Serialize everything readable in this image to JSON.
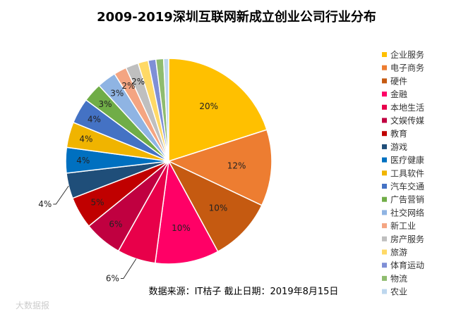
{
  "chart_data": {
    "type": "pie",
    "title": "2009-2019深圳互联网新成立创业公司行业分布",
    "source_note": "数据来源：IT桔子 截止日期：2019年8月15日",
    "watermark": "大数据报",
    "slices": [
      {
        "label": "企业服务",
        "value": 20,
        "value_label": "20%",
        "color": "#FFC000"
      },
      {
        "label": "电子商务",
        "value": 12,
        "value_label": "12%",
        "color": "#ED7D31"
      },
      {
        "label": "硬件",
        "value": 10,
        "value_label": "10%",
        "color": "#C55A11"
      },
      {
        "label": "金融",
        "value": 10,
        "value_label": "10%",
        "color": "#FF0066"
      },
      {
        "label": "本地生活",
        "value": 6,
        "value_label": "6%",
        "color": "#E8004A"
      },
      {
        "label": "文娱传媒",
        "value": 6,
        "value_label": "6%",
        "color": "#C00040"
      },
      {
        "label": "教育",
        "value": 5,
        "value_label": "5%",
        "color": "#C00000"
      },
      {
        "label": "游戏",
        "value": 4,
        "value_label": "4%",
        "color": "#1F4E79"
      },
      {
        "label": "医疗健康",
        "value": 4,
        "value_label": "4%",
        "color": "#0070C0"
      },
      {
        "label": "工具软件",
        "value": 4,
        "value_label": "4%",
        "color": "#F0B400"
      },
      {
        "label": "汽车交通",
        "value": 4,
        "value_label": "4%",
        "color": "#4472C4"
      },
      {
        "label": "广告营销",
        "value": 3,
        "value_label": "3%",
        "color": "#70AD47"
      },
      {
        "label": "社交网络",
        "value": 3,
        "value_label": "3%",
        "color": "#8FB4E3"
      },
      {
        "label": "新工业",
        "value": 2,
        "value_label": "2%",
        "color": "#F4A582"
      },
      {
        "label": "房产服务",
        "value": 2,
        "value_label": "2%",
        "color": "#BFBFBF"
      },
      {
        "label": "旅游",
        "value": 1.6,
        "value_label": "",
        "color": "#FFD966"
      },
      {
        "label": "体育运动",
        "value": 1.2,
        "value_label": "",
        "color": "#7F8FD6"
      },
      {
        "label": "物流",
        "value": 1.2,
        "value_label": "",
        "color": "#8FBC6F"
      },
      {
        "label": "农业",
        "value": 0.8,
        "value_label": "",
        "color": "#BDD7EE"
      }
    ]
  }
}
